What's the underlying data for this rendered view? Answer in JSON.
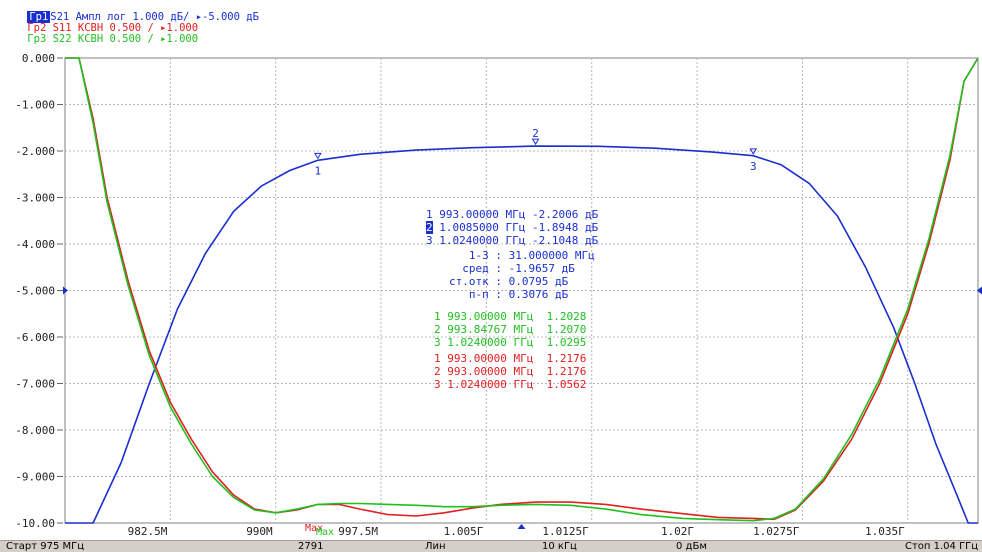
{
  "traces": [
    {
      "tag": "Гр1",
      "param": "S21",
      "format": "Ампл лог",
      "scale": "1.000 дБ/",
      "ref": "▸-5.000 дБ",
      "color": "#1a2fd0",
      "tag_bg": "#1a2fd0",
      "tag_fg": "#ffffff"
    },
    {
      "tag": "Гр2",
      "param": "S11",
      "format": "КСВН",
      "scale": "0.500 /",
      "ref": "▸1.000",
      "color": "#e02020"
    },
    {
      "tag": "Гр3",
      "param": "S22",
      "format": "КСВН",
      "scale": "0.500 /",
      "ref": "▸1.000",
      "color": "#20c020"
    }
  ],
  "markers_s21": [
    {
      "num": "1",
      "freq": "993.00000 МГц",
      "value": "-2.2006 дБ"
    },
    {
      "num": "2",
      "freq": "1.0085000 ГГц",
      "value": "-1.8948 дБ",
      "active": true
    },
    {
      "num": "3",
      "freq": "1.0240000 ГГц",
      "value": "-2.1048 дБ"
    }
  ],
  "stats": [
    {
      "label": "1-3 :",
      "value": "31.000000 МГц"
    },
    {
      "label": "сред :",
      "value": "-1.9657 дБ"
    },
    {
      "label": "ст.отк :",
      "value": "0.0795 дБ"
    },
    {
      "label": "п-п :",
      "value": "0.3076 дБ"
    }
  ],
  "markers_s22": [
    {
      "num": "1",
      "freq": "993.00000 МГц",
      "value": "1.2028"
    },
    {
      "num": "2",
      "freq": "993.84767 МГц",
      "value": "1.2070"
    },
    {
      "num": "3",
      "freq": "1.0240000 ГГц",
      "value": "1.0295"
    }
  ],
  "markers_s11": [
    {
      "num": "1",
      "freq": "993.00000 МГц",
      "value": "1.2176"
    },
    {
      "num": "2",
      "freq": "993.00000 МГц",
      "value": "1.2176"
    },
    {
      "num": "3",
      "freq": "1.0240000 ГГц",
      "value": "1.0562"
    }
  ],
  "max_label": "Max",
  "status": {
    "start": "Старт 975 МГц",
    "points": "2791",
    "sweep": "Лин",
    "ifbw": "10 кГц",
    "power": "0 дБм",
    "stop": "Стоп 1.04 ГГц"
  },
  "colors": {
    "s21": "#1a2fd0",
    "s11": "#e02020",
    "s22": "#20c020",
    "grid": "#b8b8b8",
    "axis_text": "#222222"
  },
  "chart_data": {
    "type": "line",
    "x_unit": "МГц",
    "xlim": [
      975,
      1040
    ],
    "ylim": [
      -10,
      0
    ],
    "grid": true,
    "y_ticks": [
      "0.000",
      "-1.000",
      "-2.000",
      "-3.000",
      "-4.000",
      "-5.000",
      "-6.000",
      "-7.000",
      "-8.000",
      "-9.000",
      "-10.00"
    ],
    "x_ticks": [
      "982.5М",
      "990М",
      "997.5М",
      "1.005Г",
      "1.0125Г",
      "1.02Г",
      "1.0275Г",
      "1.035Г"
    ],
    "x_tick_values": [
      982.5,
      990,
      997.5,
      1005,
      1012.5,
      1020,
      1027.5,
      1035
    ],
    "series": [
      {
        "name": "S21",
        "color": "#1a2fd0",
        "x": [
          975,
          977,
          979,
          981,
          983,
          985,
          987,
          989,
          991,
          993,
          996,
          1000,
          1004,
          1008.5,
          1013,
          1017,
          1021,
          1024,
          1026,
          1028,
          1030,
          1032,
          1034,
          1035.5,
          1037,
          1038.5,
          1039.3,
          1040
        ],
        "y": [
          -10,
          -10,
          -8.7,
          -7.0,
          -5.4,
          -4.2,
          -3.3,
          -2.75,
          -2.42,
          -2.2,
          -2.07,
          -1.98,
          -1.93,
          -1.895,
          -1.9,
          -1.94,
          -2.02,
          -2.1,
          -2.3,
          -2.7,
          -3.4,
          -4.5,
          -5.8,
          -7.0,
          -8.3,
          -9.4,
          -10,
          -10
        ]
      },
      {
        "name": "S11",
        "color": "#e02020",
        "x": [
          975,
          976,
          977,
          978,
          979.5,
          981,
          982.5,
          984,
          985.5,
          987,
          988.5,
          990,
          991.5,
          993,
          994.5,
          996,
          998,
          1000,
          1002,
          1004,
          1006,
          1008.5,
          1011,
          1013.5,
          1016,
          1019,
          1021.5,
          1024,
          1025.5,
          1027,
          1029,
          1031,
          1033,
          1035,
          1036.5,
          1038,
          1039,
          1040
        ],
        "y": [
          0,
          0,
          -1.3,
          -3.0,
          -4.8,
          -6.3,
          -7.4,
          -8.2,
          -8.9,
          -9.4,
          -9.7,
          -9.78,
          -9.72,
          -9.6,
          -9.6,
          -9.7,
          -9.82,
          -9.85,
          -9.78,
          -9.68,
          -9.6,
          -9.55,
          -9.55,
          -9.6,
          -9.7,
          -9.8,
          -9.88,
          -9.9,
          -9.92,
          -9.72,
          -9.1,
          -8.2,
          -7.0,
          -5.5,
          -4.0,
          -2.2,
          -0.5,
          0
        ]
      },
      {
        "name": "S22",
        "color": "#20c020",
        "x": [
          975,
          976,
          977,
          978,
          979.5,
          981,
          982.5,
          984,
          985.5,
          987,
          988.5,
          990,
          991.5,
          993,
          994.5,
          996,
          998,
          1000,
          1002,
          1004,
          1006,
          1008.5,
          1011,
          1013.5,
          1016,
          1019,
          1021.5,
          1024,
          1025.5,
          1027,
          1029,
          1031,
          1033,
          1035,
          1036.5,
          1038,
          1039,
          1040
        ],
        "y": [
          0,
          0,
          -1.4,
          -3.1,
          -4.9,
          -6.4,
          -7.5,
          -8.3,
          -9.0,
          -9.45,
          -9.72,
          -9.78,
          -9.7,
          -9.6,
          -9.58,
          -9.58,
          -9.6,
          -9.62,
          -9.65,
          -9.65,
          -9.62,
          -9.6,
          -9.62,
          -9.7,
          -9.82,
          -9.9,
          -9.93,
          -9.95,
          -9.9,
          -9.7,
          -9.05,
          -8.1,
          -6.9,
          -5.4,
          -3.9,
          -2.1,
          -0.5,
          0
        ]
      }
    ],
    "markers": [
      {
        "label": "1",
        "series": "S21",
        "x": 993,
        "y": -2.2006
      },
      {
        "label": "2",
        "series": "S21",
        "x": 1008.5,
        "y": -1.8948
      },
      {
        "label": "3",
        "series": "S21",
        "x": 1024,
        "y": -2.1048
      }
    ]
  }
}
